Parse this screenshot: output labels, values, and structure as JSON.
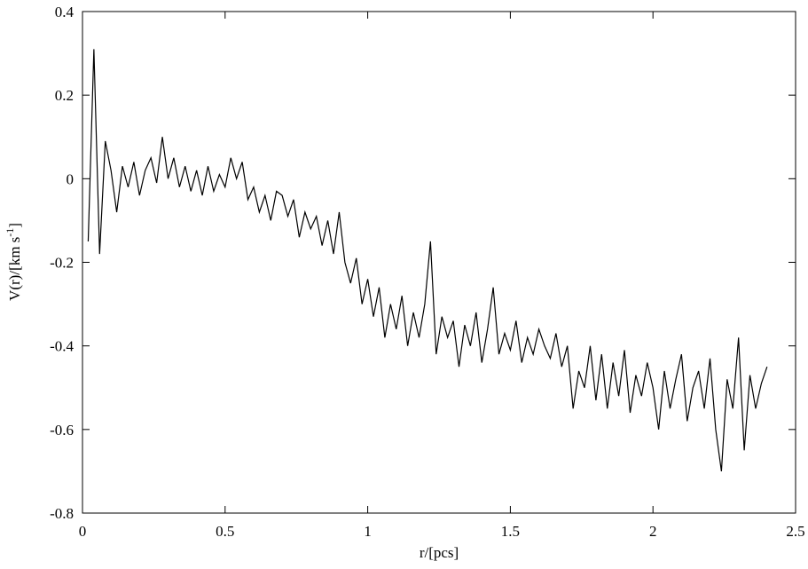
{
  "chart_data": {
    "type": "line",
    "xlabel": "r/[pcs]",
    "ylabel": [
      "V(r)/[km s",
      "-1",
      "]"
    ],
    "xlim": [
      0,
      2.5
    ],
    "xticks": [
      0,
      0.5,
      1,
      1.5,
      2,
      2.5
    ],
    "ylim": [
      -0.8,
      0.4
    ],
    "yticks": [
      0.4,
      0.2,
      0,
      -0.2,
      -0.4,
      -0.6,
      -0.8
    ],
    "series": [
      {
        "color": "#000000",
        "x": [
          0.02,
          0.04,
          0.06,
          0.08,
          0.1,
          0.12,
          0.14,
          0.16,
          0.18,
          0.2,
          0.22,
          0.24,
          0.26,
          0.28,
          0.3,
          0.32,
          0.34,
          0.36,
          0.38,
          0.4,
          0.42,
          0.44,
          0.46,
          0.48,
          0.5,
          0.52,
          0.54,
          0.56,
          0.58,
          0.6,
          0.62,
          0.64,
          0.66,
          0.68,
          0.7,
          0.72,
          0.74,
          0.76,
          0.78,
          0.8,
          0.82,
          0.84,
          0.86,
          0.88,
          0.9,
          0.92,
          0.94,
          0.96,
          0.98,
          1.0,
          1.02,
          1.04,
          1.06,
          1.08,
          1.1,
          1.12,
          1.14,
          1.16,
          1.18,
          1.2,
          1.22,
          1.24,
          1.26,
          1.28,
          1.3,
          1.32,
          1.34,
          1.36,
          1.38,
          1.4,
          1.42,
          1.44,
          1.46,
          1.48,
          1.5,
          1.52,
          1.54,
          1.56,
          1.58,
          1.6,
          1.62,
          1.64,
          1.66,
          1.68,
          1.7,
          1.72,
          1.74,
          1.76,
          1.78,
          1.8,
          1.82,
          1.84,
          1.86,
          1.88,
          1.9,
          1.92,
          1.94,
          1.96,
          1.98,
          2.0,
          2.02,
          2.04,
          2.06,
          2.08,
          2.1,
          2.12,
          2.14,
          2.16,
          2.18,
          2.2,
          2.22,
          2.24,
          2.26,
          2.28,
          2.3,
          2.32,
          2.34,
          2.36,
          2.38,
          2.4
        ],
        "values": [
          -0.15,
          0.31,
          -0.18,
          0.09,
          0.02,
          -0.08,
          0.03,
          -0.02,
          0.04,
          -0.04,
          0.02,
          0.05,
          -0.01,
          0.1,
          0.0,
          0.05,
          -0.02,
          0.03,
          -0.03,
          0.02,
          -0.04,
          0.03,
          -0.03,
          0.01,
          -0.02,
          0.05,
          0.0,
          0.04,
          -0.05,
          -0.02,
          -0.08,
          -0.04,
          -0.1,
          -0.03,
          -0.04,
          -0.09,
          -0.05,
          -0.14,
          -0.08,
          -0.12,
          -0.09,
          -0.16,
          -0.1,
          -0.18,
          -0.08,
          -0.2,
          -0.25,
          -0.19,
          -0.3,
          -0.24,
          -0.33,
          -0.26,
          -0.38,
          -0.3,
          -0.36,
          -0.28,
          -0.4,
          -0.32,
          -0.38,
          -0.3,
          -0.15,
          -0.42,
          -0.33,
          -0.38,
          -0.34,
          -0.45,
          -0.35,
          -0.4,
          -0.32,
          -0.44,
          -0.36,
          -0.26,
          -0.42,
          -0.37,
          -0.41,
          -0.34,
          -0.44,
          -0.38,
          -0.42,
          -0.36,
          -0.4,
          -0.43,
          -0.37,
          -0.45,
          -0.4,
          -0.55,
          -0.46,
          -0.5,
          -0.4,
          -0.53,
          -0.42,
          -0.55,
          -0.44,
          -0.52,
          -0.41,
          -0.56,
          -0.47,
          -0.52,
          -0.44,
          -0.5,
          -0.6,
          -0.46,
          -0.55,
          -0.48,
          -0.42,
          -0.58,
          -0.5,
          -0.46,
          -0.55,
          -0.43,
          -0.6,
          -0.7,
          -0.48,
          -0.55,
          -0.38,
          -0.65,
          -0.47,
          -0.55,
          -0.49,
          -0.45
        ]
      }
    ]
  }
}
